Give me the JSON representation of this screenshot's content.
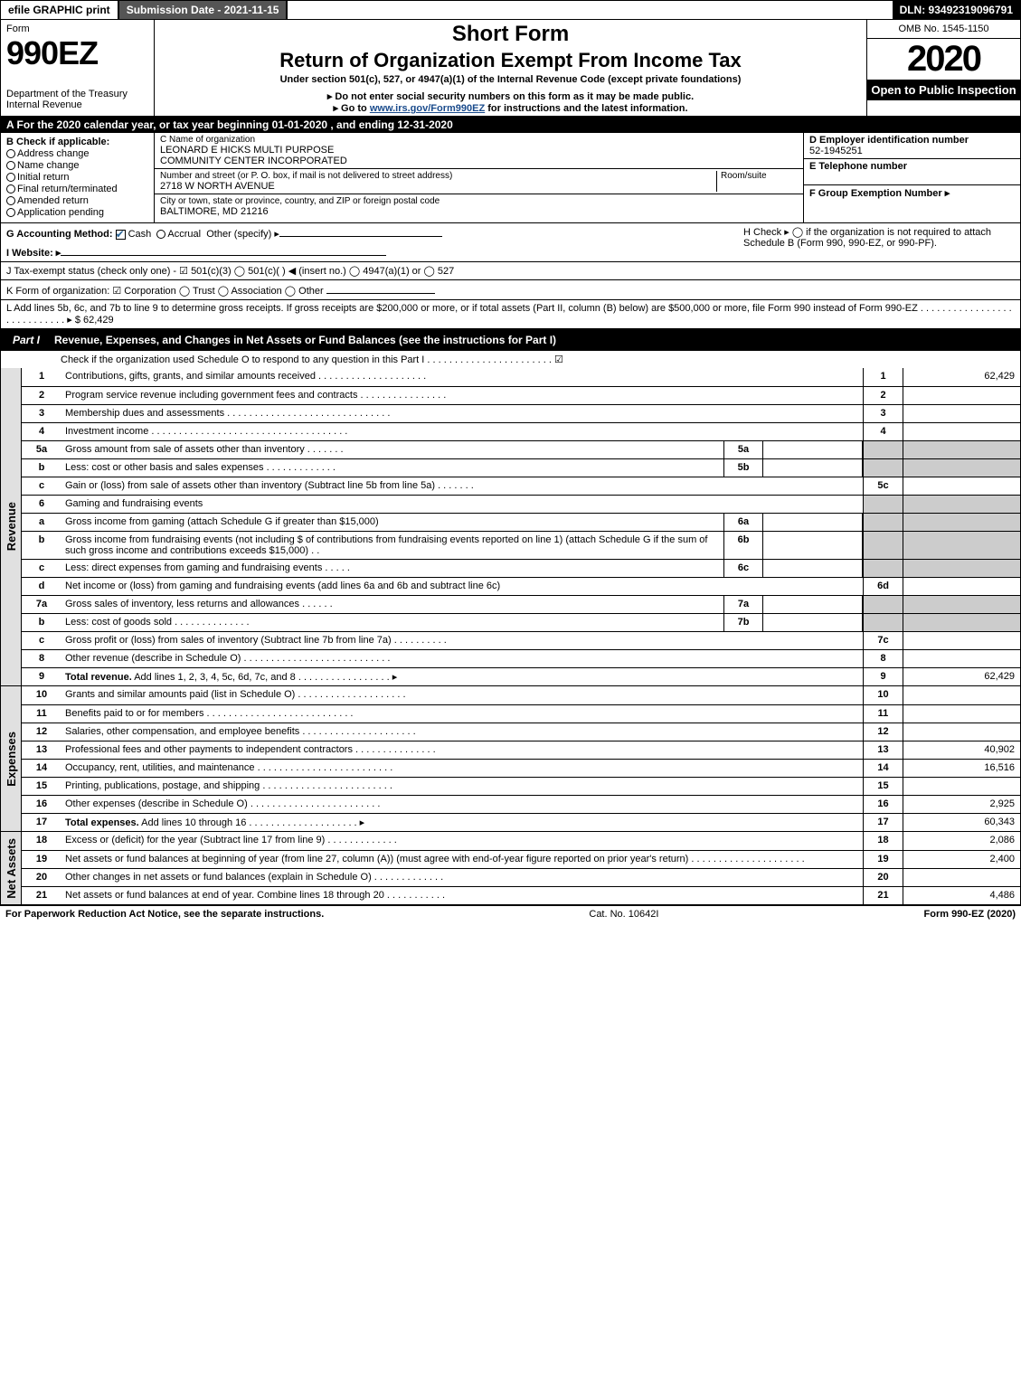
{
  "topbar": {
    "efile": "efile GRAPHIC print",
    "submission": "Submission Date - 2021-11-15",
    "dln": "DLN: 93492319096791"
  },
  "header": {
    "form_label": "Form",
    "form_number": "990EZ",
    "dept": "Department of the Treasury",
    "irs": "Internal Revenue",
    "short_form": "Short Form",
    "title": "Return of Organization Exempt From Income Tax",
    "subtitle": "Under section 501(c), 527, or 4947(a)(1) of the Internal Revenue Code (except private foundations)",
    "warning": "▸ Do not enter social security numbers on this form as it may be made public.",
    "goto_pre": "▸ Go to ",
    "goto_link": "www.irs.gov/Form990EZ",
    "goto_post": " for instructions and the latest information.",
    "omb": "OMB No. 1545-1150",
    "year": "2020",
    "open": "Open to Public Inspection"
  },
  "section_a": "A For the 2020 calendar year, or tax year beginning 01-01-2020 , and ending 12-31-2020",
  "col_b": {
    "header": "B  Check if applicable:",
    "opts": [
      "Address change",
      "Name change",
      "Initial return",
      "Final return/terminated",
      "Amended return",
      "Application pending"
    ]
  },
  "col_c": {
    "name_label": "C Name of organization",
    "name1": "LEONARD E HICKS MULTI PURPOSE",
    "name2": "COMMUNITY CENTER INCORPORATED",
    "street_label": "Number and street (or P. O. box, if mail is not delivered to street address)",
    "room_label": "Room/suite",
    "street": "2718 W NORTH AVENUE",
    "city_label": "City or town, state or province, country, and ZIP or foreign postal code",
    "city": "BALTIMORE, MD  21216"
  },
  "col_d": {
    "d_label": "D Employer identification number",
    "ein": "52-1945251",
    "e_label": "E Telephone number",
    "f_label": "F Group Exemption Number  ▸"
  },
  "row_g": {
    "label": "G Accounting Method:",
    "cash": "Cash",
    "accrual": "Accrual",
    "other": "Other (specify) ▸"
  },
  "row_h": "H  Check ▸  ◯ if the organization is not required to attach Schedule B (Form 990, 990-EZ, or 990-PF).",
  "row_i": "I Website: ▸",
  "row_j": "J Tax-exempt status (check only one) - ☑ 501(c)(3)  ◯ 501(c)(  ) ◀ (insert no.)  ◯ 4947(a)(1) or  ◯ 527",
  "row_k": "K Form of organization:  ☑ Corporation  ◯ Trust  ◯ Association  ◯ Other",
  "row_l": {
    "text": "L Add lines 5b, 6c, and 7b to line 9 to determine gross receipts. If gross receipts are $200,000 or more, or if total assets (Part II, column (B) below) are $500,000 or more, file Form 990 instead of Form 990-EZ .  .  .  .  .  .  .  .  .  .  .  .  .  .  .  .  .  .  .  .  .  .  .  .  .  .  .  .  ▸ $",
    "amount": "62,429"
  },
  "part1": {
    "label": "Part I",
    "title": "Revenue, Expenses, and Changes in Net Assets or Fund Balances (see the instructions for Part I)",
    "check": "Check if the organization used Schedule O to respond to any question in this Part I .  .  .  .  .  .  .  .  .  .  .  .  .  .  .  .  .  .  .  .  .  .  .  ☑"
  },
  "revenue_label": "Revenue",
  "expenses_label": "Expenses",
  "netassets_label": "Net Assets",
  "lines": {
    "l1": {
      "no": "1",
      "desc": "Contributions, gifts, grants, and similar amounts received .  .  .  .  .  .  .  .  .  .  .  .  .  .  .  .  .  .  .  .",
      "rn": "1",
      "val": "62,429"
    },
    "l2": {
      "no": "2",
      "desc": "Program service revenue including government fees and contracts .  .  .  .  .  .  .  .  .  .  .  .  .  .  .  .",
      "rn": "2",
      "val": ""
    },
    "l3": {
      "no": "3",
      "desc": "Membership dues and assessments .  .  .  .  .  .  .  .  .  .  .  .  .  .  .  .  .  .  .  .  .  .  .  .  .  .  .  .  .  .",
      "rn": "3",
      "val": ""
    },
    "l4": {
      "no": "4",
      "desc": "Investment income .  .  .  .  .  .  .  .  .  .  .  .  .  .  .  .  .  .  .  .  .  .  .  .  .  .  .  .  .  .  .  .  .  .  .  .",
      "rn": "4",
      "val": ""
    },
    "l5a": {
      "no": "5a",
      "desc": "Gross amount from sale of assets other than inventory .  .  .  .  .  .  .",
      "sub": "5a"
    },
    "l5b": {
      "no": "b",
      "desc": "Less: cost or other basis and sales expenses .  .  .  .  .  .  .  .  .  .  .  .  .",
      "sub": "5b"
    },
    "l5c": {
      "no": "c",
      "desc": "Gain or (loss) from sale of assets other than inventory (Subtract line 5b from line 5a) .  .  .  .  .  .  .",
      "rn": "5c",
      "val": ""
    },
    "l6": {
      "no": "6",
      "desc": "Gaming and fundraising events"
    },
    "l6a": {
      "no": "a",
      "desc": "Gross income from gaming (attach Schedule G if greater than $15,000)",
      "sub": "6a"
    },
    "l6b": {
      "no": "b",
      "desc": "Gross income from fundraising events (not including $                     of contributions from fundraising events reported on line 1) (attach Schedule G if the sum of such gross income and contributions exceeds $15,000)    .   .",
      "sub": "6b"
    },
    "l6c": {
      "no": "c",
      "desc": "Less: direct expenses from gaming and fundraising events  .  .  .  .  .",
      "sub": "6c"
    },
    "l6d": {
      "no": "d",
      "desc": "Net income or (loss) from gaming and fundraising events (add lines 6a and 6b and subtract line 6c)",
      "rn": "6d",
      "val": ""
    },
    "l7a": {
      "no": "7a",
      "desc": "Gross sales of inventory, less returns and allowances .  .  .  .  .  .",
      "sub": "7a"
    },
    "l7b": {
      "no": "b",
      "desc": "Less: cost of goods sold       .   .   .   .   .   .   .   .   .   .   .   .   .   .",
      "sub": "7b"
    },
    "l7c": {
      "no": "c",
      "desc": "Gross profit or (loss) from sales of inventory (Subtract line 7b from line 7a) .  .  .  .  .  .  .  .  .  .",
      "rn": "7c",
      "val": ""
    },
    "l8": {
      "no": "8",
      "desc": "Other revenue (describe in Schedule O) .  .  .  .  .  .  .  .  .  .  .  .  .  .  .  .  .  .  .  .  .  .  .  .  .  .  .",
      "rn": "8",
      "val": ""
    },
    "l9": {
      "no": "9",
      "desc": "Total revenue. Add lines 1, 2, 3, 4, 5c, 6d, 7c, and 8   .  .  .  .  .  .  .  .  .  .  .  .  .  .  .  .  .  ▸",
      "rn": "9",
      "val": "62,429",
      "bold": true
    },
    "l10": {
      "no": "10",
      "desc": "Grants and similar amounts paid (list in Schedule O) .  .  .  .  .  .  .  .  .  .  .  .  .  .  .  .  .  .  .  .",
      "rn": "10",
      "val": ""
    },
    "l11": {
      "no": "11",
      "desc": "Benefits paid to or for members       .  .  .  .  .  .  .  .  .  .  .  .  .  .  .  .  .  .  .  .  .  .  .  .  .  .  .",
      "rn": "11",
      "val": ""
    },
    "l12": {
      "no": "12",
      "desc": "Salaries, other compensation, and employee benefits .  .  .  .  .  .  .  .  .  .  .  .  .  .  .  .  .  .  .  .  .",
      "rn": "12",
      "val": ""
    },
    "l13": {
      "no": "13",
      "desc": "Professional fees and other payments to independent contractors .  .  .  .  .  .  .  .  .  .  .  .  .  .  .",
      "rn": "13",
      "val": "40,902"
    },
    "l14": {
      "no": "14",
      "desc": "Occupancy, rent, utilities, and maintenance .  .  .  .  .  .  .  .  .  .  .  .  .  .  .  .  .  .  .  .  .  .  .  .  .",
      "rn": "14",
      "val": "16,516"
    },
    "l15": {
      "no": "15",
      "desc": "Printing, publications, postage, and shipping .  .  .  .  .  .  .  .  .  .  .  .  .  .  .  .  .  .  .  .  .  .  .  .",
      "rn": "15",
      "val": ""
    },
    "l16": {
      "no": "16",
      "desc": "Other expenses (describe in Schedule O)     .  .  .  .  .  .  .  .  .  .  .  .  .  .  .  .  .  .  .  .  .  .  .  .",
      "rn": "16",
      "val": "2,925"
    },
    "l17": {
      "no": "17",
      "desc": "Total expenses. Add lines 10 through 16      .  .  .  .  .  .  .  .  .  .  .  .  .  .  .  .  .  .  .  .  ▸",
      "rn": "17",
      "val": "60,343",
      "bold": true
    },
    "l18": {
      "no": "18",
      "desc": "Excess or (deficit) for the year (Subtract line 17 from line 9)        .  .  .  .  .  .  .  .  .  .  .  .  .",
      "rn": "18",
      "val": "2,086"
    },
    "l19": {
      "no": "19",
      "desc": "Net assets or fund balances at beginning of year (from line 27, column (A)) (must agree with end-of-year figure reported on prior year's return) .  .  .  .  .  .  .  .  .  .  .  .  .  .  .  .  .  .  .  .  .",
      "rn": "19",
      "val": "2,400"
    },
    "l20": {
      "no": "20",
      "desc": "Other changes in net assets or fund balances (explain in Schedule O) .  .  .  .  .  .  .  .  .  .  .  .  .",
      "rn": "20",
      "val": ""
    },
    "l21": {
      "no": "21",
      "desc": "Net assets or fund balances at end of year. Combine lines 18 through 20 .  .  .  .  .  .  .  .  .  .  .",
      "rn": "21",
      "val": "4,486"
    }
  },
  "footer": {
    "left": "For Paperwork Reduction Act Notice, see the separate instructions.",
    "mid": "Cat. No. 10642I",
    "right": "Form 990-EZ (2020)"
  }
}
